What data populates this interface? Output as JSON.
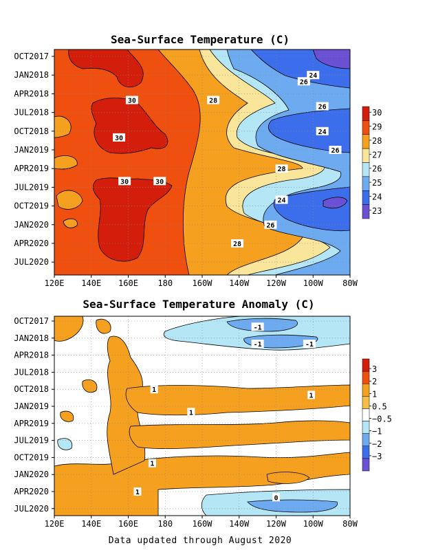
{
  "footer": "Data updated through August 2020",
  "chart_data": [
    {
      "type": "heatmap",
      "title": "Sea-Surface Temperature (C)",
      "xlabel": "",
      "ylabel": "",
      "x_ticks": [
        "120E",
        "140E",
        "160E",
        "180",
        "160W",
        "140W",
        "120W",
        "100W",
        "80W"
      ],
      "x_range": [
        "120E",
        "80W"
      ],
      "y_ticks": [
        "OCT2017",
        "JAN2018",
        "APR2018",
        "JUL2018",
        "OCT2018",
        "JAN2019",
        "APR2019",
        "JUL2019",
        "OCT2019",
        "JAN2020",
        "APR2020",
        "JUL2020"
      ],
      "y_direction": "time increases downward",
      "grid": true,
      "colorbar": {
        "position": "right",
        "labels": [
          "30",
          "29",
          "28",
          "27",
          "26",
          "25",
          "24",
          "23"
        ],
        "colors": [
          "#d21e0a",
          "#f0500f",
          "#f5a01e",
          "#fae69b",
          "#b4e6f5",
          "#6eaaf0",
          "#3c6eeb",
          "#6a50d2"
        ]
      },
      "contour_labels": [
        {
          "x": "100W",
          "y": "JAN2018",
          "text": "24"
        },
        {
          "x": "105W",
          "y": "FEB2018",
          "text": "26"
        },
        {
          "x": "162E",
          "y": "MAY2018",
          "text": "30"
        },
        {
          "x": "154W",
          "y": "MAY2018",
          "text": "28"
        },
        {
          "x": "95W",
          "y": "JUN2018",
          "text": "26"
        },
        {
          "x": "155E",
          "y": "NOV2018",
          "text": "30"
        },
        {
          "x": "95W",
          "y": "OCT2018",
          "text": "24"
        },
        {
          "x": "88W",
          "y": "JAN2019",
          "text": "26"
        },
        {
          "x": "117W",
          "y": "APR2019",
          "text": "28"
        },
        {
          "x": "158E",
          "y": "JUN2019",
          "text": "30"
        },
        {
          "x": "177E",
          "y": "JUN2019",
          "text": "30"
        },
        {
          "x": "117W",
          "y": "SEP2019",
          "text": "24"
        },
        {
          "x": "123W",
          "y": "JAN2020",
          "text": "26"
        },
        {
          "x": "141W",
          "y": "APR2020",
          "text": "28"
        }
      ]
    },
    {
      "type": "heatmap",
      "title": "Sea-Surface Temperature Anomaly (C)",
      "xlabel": "",
      "ylabel": "",
      "x_ticks": [
        "120E",
        "140E",
        "160E",
        "180",
        "160W",
        "140W",
        "120W",
        "100W",
        "80W"
      ],
      "x_range": [
        "120E",
        "80W"
      ],
      "y_ticks": [
        "OCT2017",
        "JAN2018",
        "APR2018",
        "JUL2018",
        "OCT2018",
        "JAN2019",
        "APR2019",
        "JUL2019",
        "OCT2019",
        "JAN2020",
        "APR2020",
        "JUL2020"
      ],
      "y_direction": "time increases downward",
      "grid": true,
      "colorbar": {
        "position": "right",
        "labels": [
          "3",
          "2",
          "1",
          "0.5",
          "-0.5",
          "-1",
          "-2",
          "-3"
        ],
        "colors": [
          "#d21e0a",
          "#f0500f",
          "#f5a01e",
          "#f7be46",
          "#ffffff",
          "#b4e6f5",
          "#6eaaf0",
          "#3c6eeb",
          "#6a50d2"
        ]
      },
      "contour_labels": [
        {
          "x": "130W",
          "y": "NOV2017",
          "text": "-1"
        },
        {
          "x": "130W",
          "y": "FEB2018",
          "text": "-1"
        },
        {
          "x": "102W",
          "y": "FEB2018",
          "text": "-1"
        },
        {
          "x": "174E",
          "y": "OCT2018",
          "text": "1"
        },
        {
          "x": "101W",
          "y": "NOV2018",
          "text": "1"
        },
        {
          "x": "166W",
          "y": "FEB2019",
          "text": "1"
        },
        {
          "x": "173E",
          "y": "NOV2019",
          "text": "1"
        },
        {
          "x": "165E",
          "y": "APR2020",
          "text": "1"
        },
        {
          "x": "120W",
          "y": "MAY2020",
          "text": "0"
        }
      ]
    }
  ]
}
